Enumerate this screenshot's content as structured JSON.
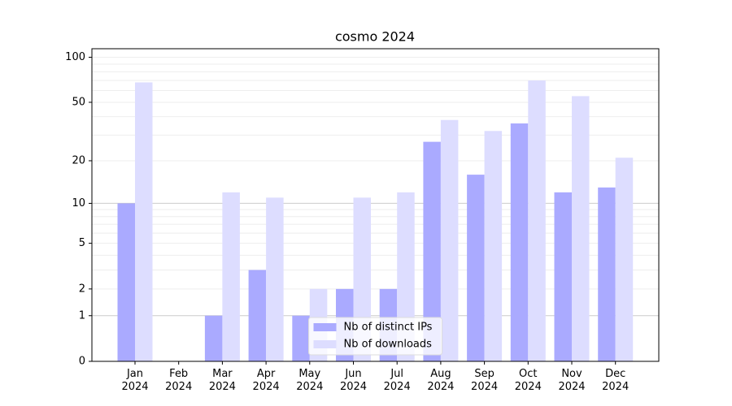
{
  "chart_data": {
    "type": "bar",
    "title": "cosmo 2024",
    "categories": [
      "Jan\n2024",
      "Feb\n2024",
      "Mar\n2024",
      "Apr\n2024",
      "May\n2024",
      "Jun\n2024",
      "Jul\n2024",
      "Aug\n2024",
      "Sep\n2024",
      "Oct\n2024",
      "Nov\n2024",
      "Dec\n2024"
    ],
    "series": [
      {
        "name": "Nb of distinct IPs",
        "color": "#aaaaff",
        "values": [
          10,
          0,
          1,
          3,
          1,
          2,
          2,
          27,
          16,
          36,
          12,
          13
        ]
      },
      {
        "name": "Nb of downloads",
        "color": "#ddddff",
        "values": [
          68,
          0,
          12,
          11,
          2,
          11,
          12,
          38,
          32,
          70,
          55,
          21
        ]
      }
    ],
    "scale": "log1p",
    "ylim": [
      0,
      114
    ],
    "yticks": [
      0,
      1,
      2,
      5,
      10,
      20,
      50,
      100
    ],
    "major_grid": [
      1,
      10
    ],
    "minor_grid": [
      2,
      3,
      4,
      5,
      6,
      7,
      8,
      9,
      20,
      30,
      40,
      50,
      60,
      70,
      80,
      90,
      100
    ],
    "legend": "lower center"
  }
}
